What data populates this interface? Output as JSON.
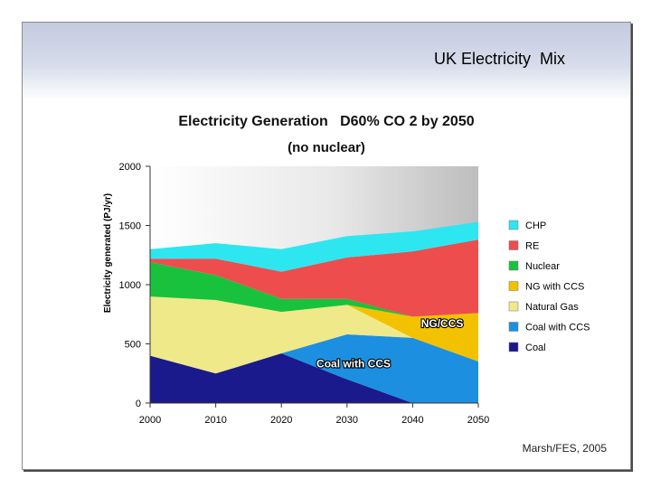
{
  "slide": {
    "title": "UK Electricity  Mix",
    "credit": "Marsh/FES, 2005"
  },
  "chart_data": {
    "type": "area",
    "stacked": true,
    "title": "Electricity Generation   D60% CO 2 by 2050",
    "subtitle": "(no nuclear)",
    "ylabel": "Electricity generated (PJ/yr)",
    "xlabel": "",
    "x": [
      2000,
      2010,
      2020,
      2030,
      2040,
      2050
    ],
    "xticks": [
      "2000",
      "2010",
      "2020",
      "2030",
      "2040",
      "2050"
    ],
    "yticks": [
      "0",
      "500",
      "1000",
      "1500",
      "2000"
    ],
    "ylim": [
      0,
      2000
    ],
    "xlim": [
      2000,
      2050
    ],
    "grid": false,
    "legend_position": "right",
    "series": [
      {
        "name": "Coal",
        "color": "#1a1a8c",
        "values": [
          400,
          250,
          420,
          200,
          0,
          0
        ]
      },
      {
        "name": "Coal with CCS",
        "color": "#1c8fe0",
        "values": [
          0,
          0,
          0,
          380,
          550,
          350
        ]
      },
      {
        "name": "Natural Gas",
        "color": "#efe98a",
        "values": [
          500,
          620,
          350,
          250,
          0,
          0
        ]
      },
      {
        "name": "NG with CCS",
        "color": "#f2c200",
        "values": [
          0,
          0,
          0,
          0,
          180,
          410
        ]
      },
      {
        "name": "Nuclear",
        "color": "#19c23c",
        "values": [
          290,
          210,
          110,
          50,
          0,
          0
        ]
      },
      {
        "name": "RE",
        "color": "#ee4d4d",
        "values": [
          30,
          140,
          230,
          350,
          550,
          620
        ]
      },
      {
        "name": "CHP",
        "color": "#2ee6f0",
        "values": [
          80,
          130,
          190,
          180,
          170,
          150
        ]
      }
    ],
    "annotations": [
      {
        "text": "NG/CCS",
        "x": 2044.5,
        "y": 640
      },
      {
        "text": "Coal with CCS",
        "x": 2031,
        "y": 300
      }
    ]
  }
}
